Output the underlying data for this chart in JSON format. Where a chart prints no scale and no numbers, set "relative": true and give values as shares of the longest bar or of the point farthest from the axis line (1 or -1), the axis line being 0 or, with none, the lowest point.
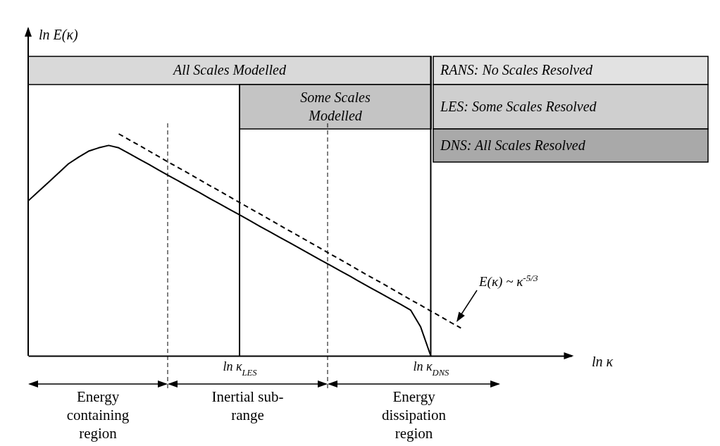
{
  "chart_data": {
    "type": "line",
    "relative": true,
    "xlabel": "ln κ",
    "categories": [
      null,
      null,
      null,
      null,
      null,
      null,
      null,
      null,
      null,
      null,
      null,
      null,
      null,
      null,
      null,
      null,
      null,
      null,
      null,
      null,
      null,
      "ln κ$_{LES}$",
      null,
      null,
      null,
      null,
      null,
      null,
      null,
      null,
      null,
      null,
      null,
      null,
      null,
      null,
      null,
      null,
      null,
      null,
      "ln κ$_{DNS}$",
      null,
      null,
      null,
      null,
      null,
      null,
      null,
      null,
      null,
      null,
      null,
      null,
      null,
      null
    ],
    "series": [
      {
        "color": "#000000",
        "values": [
          0.698,
          0.74,
          0.781,
          0.823,
          0.865,
          0.895,
          0.922,
          0.937,
          0.948,
          0.937,
          0.912,
          0.887,
          0.862,
          0.836,
          0.811,
          0.786,
          0.761,
          0.736,
          0.71,
          0.685,
          0.66,
          0.635,
          0.61,
          0.584,
          0.559,
          0.534,
          0.509,
          0.484,
          0.458,
          0.433,
          0.408,
          0.383,
          0.358,
          0.332,
          0.307,
          0.282,
          0.257,
          0.232,
          0.206,
          0.13,
          0,
          null,
          null,
          null,
          null,
          null,
          null,
          null,
          null,
          null,
          null,
          null,
          null,
          null,
          null
        ]
      },
      {
        "color": "#000000",
        "line_style": "dashed",
        "values": [
          null,
          null,
          null,
          null,
          null,
          null,
          null,
          null,
          null,
          1,
          0.974,
          0.949,
          0.923,
          0.897,
          0.871,
          0.846,
          0.82,
          0.794,
          0.768,
          0.743,
          0.717,
          0.691,
          0.665,
          0.64,
          0.614,
          0.588,
          0.562,
          0.537,
          0.511,
          0.485,
          0.459,
          0.434,
          0.408,
          0.382,
          0.356,
          0.331,
          0.305,
          0.279,
          0.253,
          0.228,
          0.202,
          0.176,
          0.15,
          0.125,
          null,
          null,
          null,
          null,
          null,
          null,
          null,
          null,
          null,
          null,
          null
        ]
      }
    ],
    "ref_lines": [
      {
        "axis": "x",
        "value": "ln κ$_{LES}$"
      },
      {
        "axis": "x",
        "value": "ln κ$_{DNS}$"
      }
    ],
    "annotations": [
      "All Scales Modelled",
      "Some Scales Modelled",
      "RANS: No Scales Resolved",
      "LES: Some Scales Resolved",
      "DNS: All Scales Resolved",
      "Energy containing region",
      "Inertial sub-range",
      "Energy dissipation region",
      "E(κ) ~ κ$^{-5/3}$",
      "ln E(κ)"
    ]
  }
}
